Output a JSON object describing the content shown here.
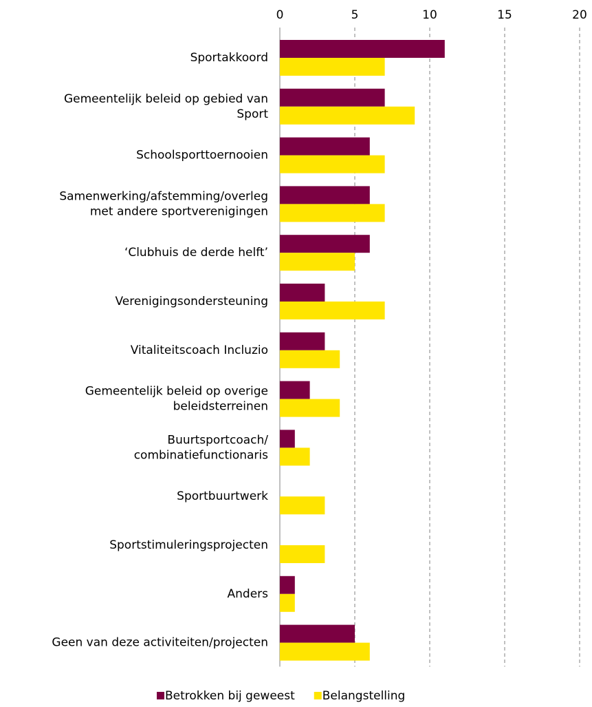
{
  "chart_data": {
    "type": "hbar",
    "categories": [
      "Sportakkoord",
      "Gemeentelijk beleid op gebied van\nSport",
      "Schoolsporttoernooien",
      "Samenwerking/afstemming/overleg\nmet andere sportverenigingen",
      "‘Clubhuis de derde helft’",
      "Verenigingsondersteuning",
      "Vitaliteitscoach Incluzio",
      "Gemeentelijk beleid op overige\nbeleidsterreinen",
      "Buurtsportcoach/\ncombinatiefunctionaris",
      "Sportbuurtwerk",
      "Sportstimuleringsprojecten",
      "Anders",
      "Geen van deze activiteiten/projecten"
    ],
    "series": [
      {
        "name": "Betrokken bij geweest",
        "color": "#7b0041",
        "values": [
          11,
          7,
          6,
          6,
          6,
          3,
          3,
          2,
          1,
          0,
          0,
          1,
          5
        ]
      },
      {
        "name": "Belangstelling",
        "color": "#ffe500",
        "values": [
          7,
          9,
          7,
          7,
          5,
          7,
          4,
          4,
          2,
          3,
          3,
          1,
          6
        ]
      }
    ],
    "xlim": [
      0,
      20
    ],
    "xticks": [
      0,
      5,
      10,
      15,
      20
    ],
    "grid": true,
    "legend": "bottom"
  }
}
